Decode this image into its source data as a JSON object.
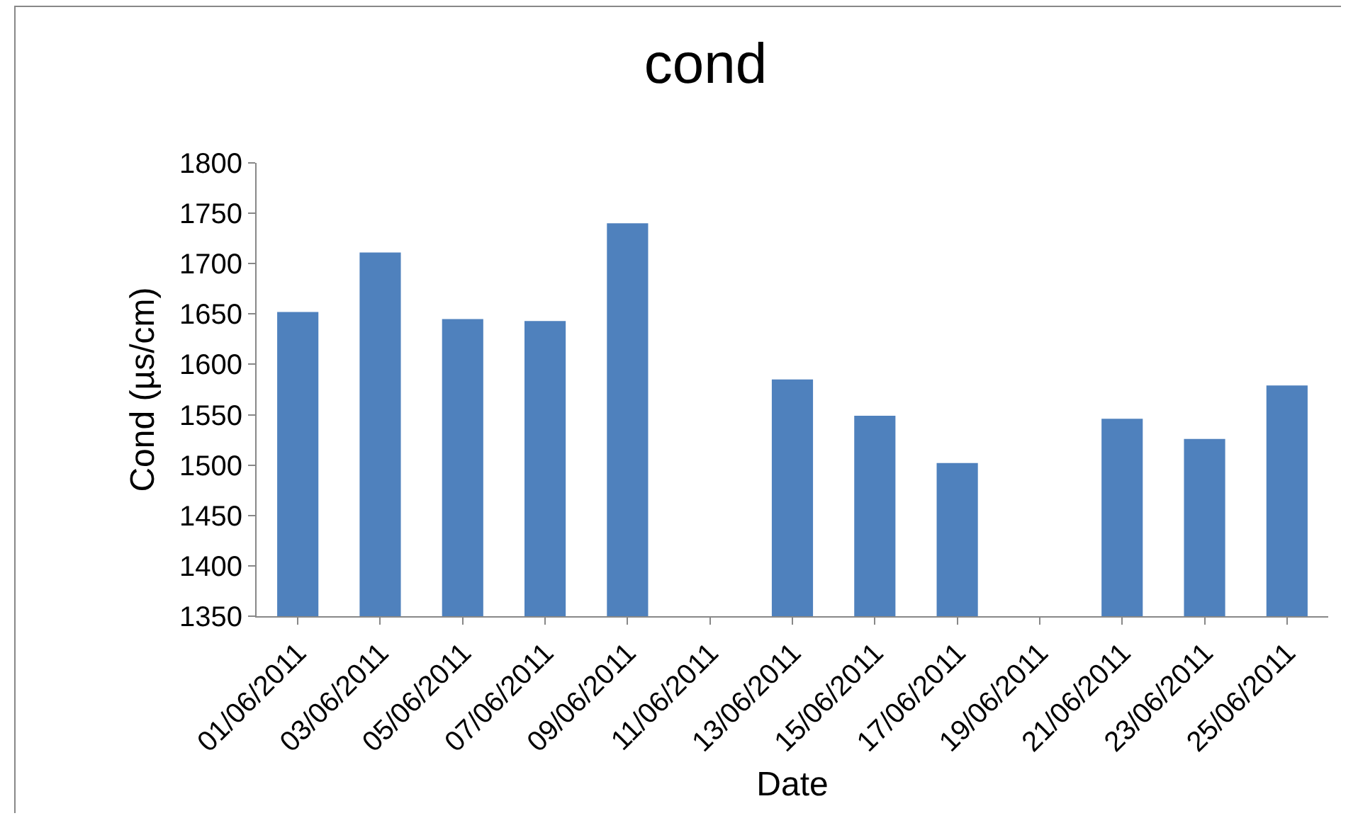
{
  "chart_data": {
    "type": "bar",
    "title": "cond",
    "xlabel": "Date",
    "ylabel": "Cond (µs/cm)",
    "categories": [
      "01/06/2011",
      "03/06/2011",
      "05/06/2011",
      "07/06/2011",
      "09/06/2011",
      "11/06/2011",
      "13/06/2011",
      "15/06/2011",
      "17/06/2011",
      "19/06/2011",
      "21/06/2011",
      "23/06/2011",
      "25/06/2011"
    ],
    "values": [
      1652,
      1711,
      1645,
      1643,
      1740,
      null,
      1585,
      1549,
      1502,
      null,
      1546,
      1526,
      1579
    ],
    "color": "#4f81bd",
    "ylim": [
      1350,
      1800
    ],
    "yticks": [
      1350,
      1400,
      1450,
      1500,
      1550,
      1600,
      1650,
      1700,
      1750,
      1800
    ],
    "grid": false,
    "legend": false
  }
}
